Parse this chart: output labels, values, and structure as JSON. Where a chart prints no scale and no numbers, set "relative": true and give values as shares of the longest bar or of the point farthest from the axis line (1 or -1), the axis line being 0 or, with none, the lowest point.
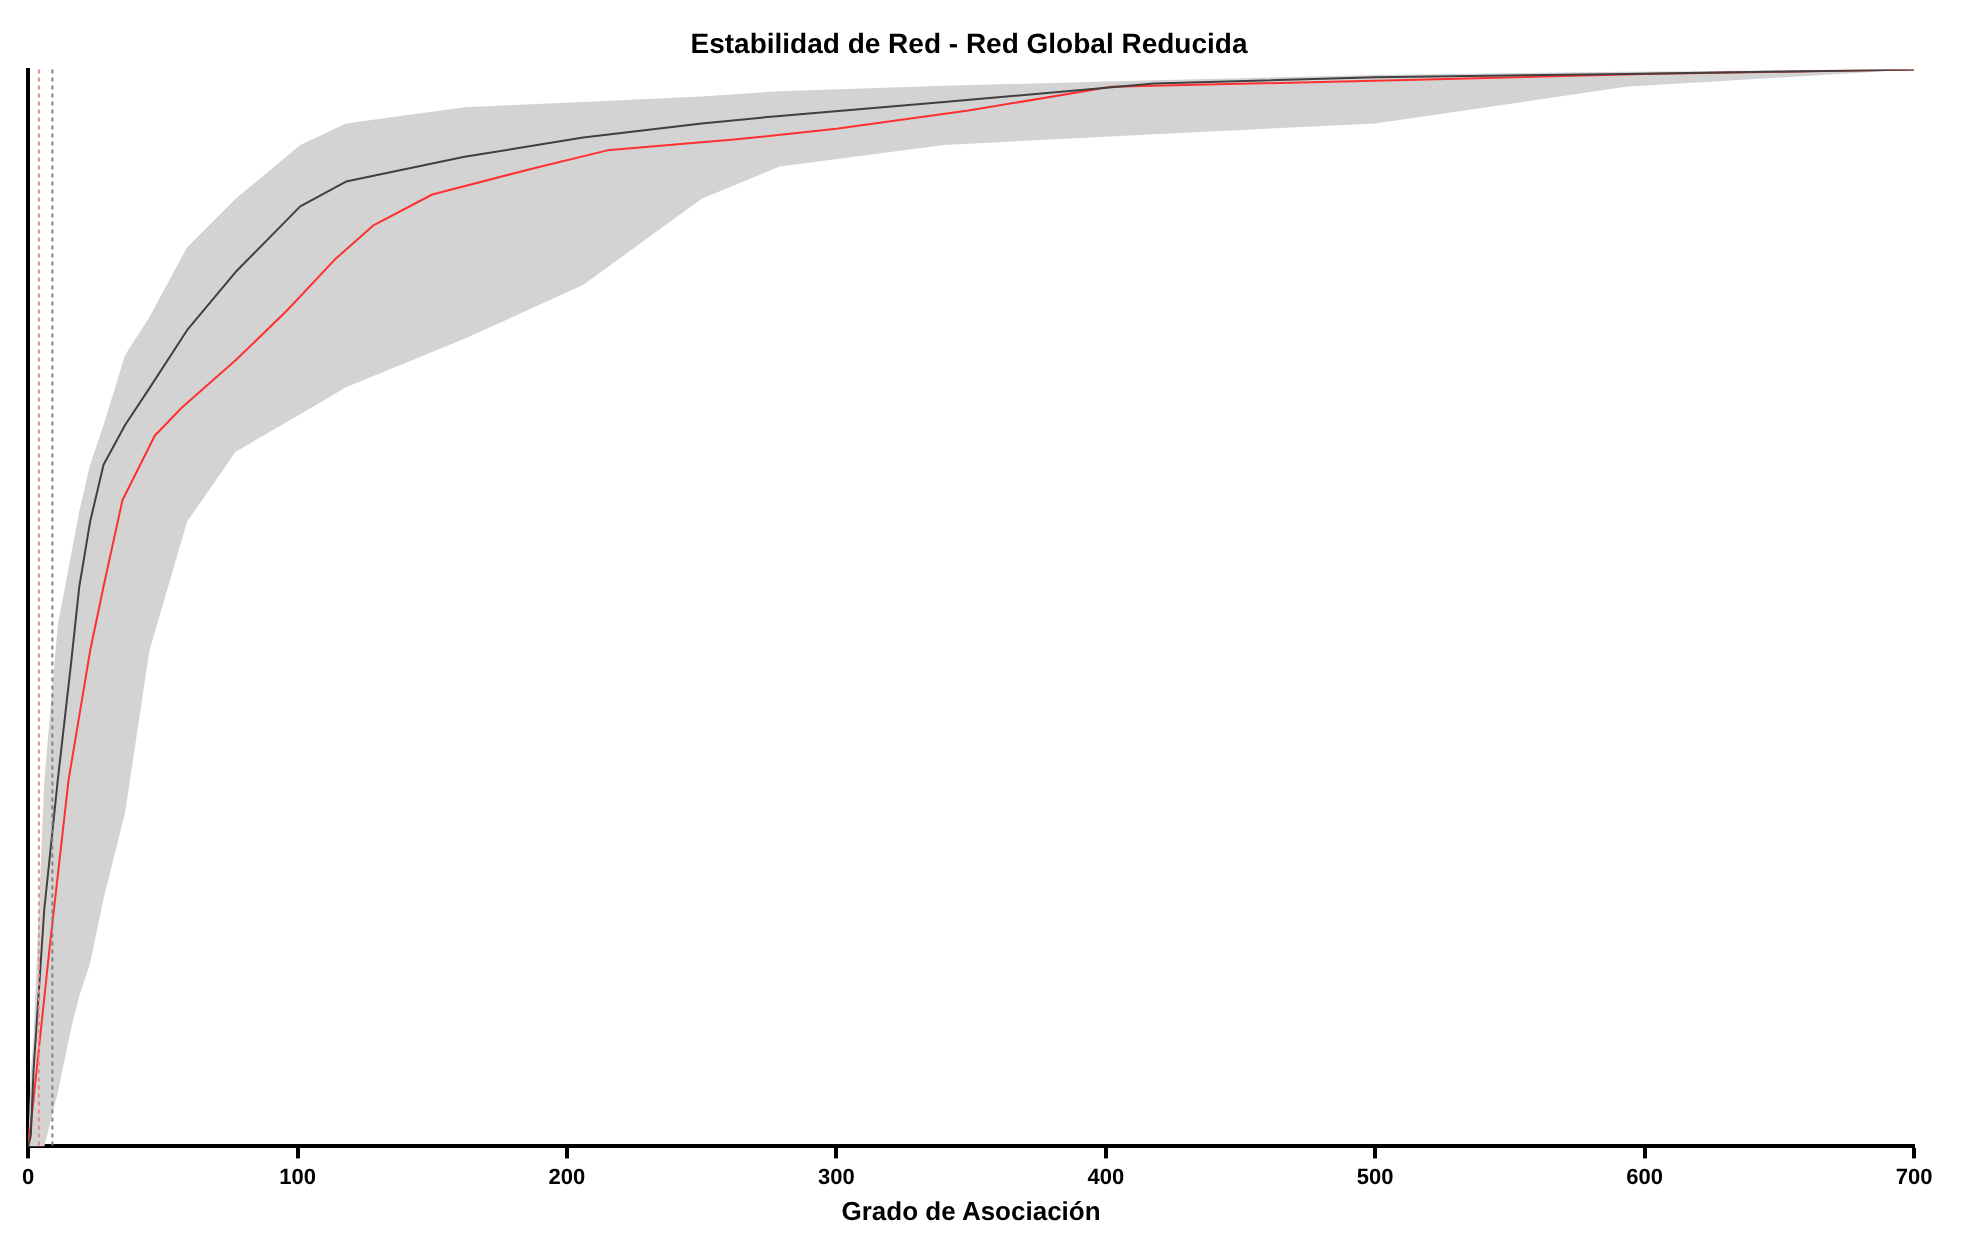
{
  "chart_data": {
    "type": "line",
    "title": "Estabilidad de Red - Red Global Reducida",
    "xlabel": "Grado de Asociación",
    "relative": true,
    "xlim": [
      0,
      700
    ],
    "xticks": [
      0,
      100,
      200,
      300,
      400,
      500,
      600,
      700
    ],
    "grid": false,
    "legend": false,
    "tick_labels": "x",
    "marker": "none",
    "line_style": "solid",
    "series": [
      {
        "color": "#404040",
        "x": [
          0,
          1,
          2,
          6,
          11,
          16,
          19,
          23,
          28,
          36,
          45,
          59,
          77,
          101,
          118,
          162,
          206,
          250,
          279,
          340,
          418,
          500,
          593,
          700
        ],
        "values": [
          0,
          0.01,
          0.07,
          0.22,
          0.34,
          0.45,
          0.52,
          0.58,
          0.633,
          0.67,
          0.704,
          0.758,
          0.812,
          0.873,
          0.896,
          0.919,
          0.937,
          0.95,
          0.957,
          0.97,
          0.987,
          0.993,
          0.996,
          1
        ],
        "lower": [
          0,
          0,
          0,
          0,
          0.05,
          0.11,
          0.14,
          0.17,
          0.23,
          0.31,
          0.46,
          0.58,
          0.645,
          0.68,
          0.705,
          0.75,
          0.8,
          0.88,
          0.91,
          0.93,
          0.94,
          0.95,
          0.984,
          1
        ],
        "upper": [
          0,
          0.07,
          0.1,
          0.34,
          0.484,
          0.55,
          0.59,
          0.633,
          0.67,
          0.735,
          0.77,
          0.835,
          0.88,
          0.93,
          0.95,
          0.965,
          0.97,
          0.975,
          0.98,
          0.985,
          0.99,
          0.995,
          0.998,
          1
        ]
      },
      {
        "color": "#ff3030",
        "x": [
          0,
          1,
          8,
          15,
          23,
          28,
          35,
          47,
          57,
          77,
          96,
          114,
          128,
          150,
          187,
          215,
          262,
          300,
          349,
          402,
          523,
          600,
          700
        ],
        "values": [
          0,
          0.02,
          0.185,
          0.34,
          0.46,
          0.52,
          0.6,
          0.66,
          0.686,
          0.73,
          0.776,
          0.824,
          0.855,
          0.884,
          0.908,
          0.925,
          0.935,
          0.945,
          0.962,
          0.984,
          0.991,
          0.996,
          1
        ]
      }
    ],
    "ref_lines": [
      {
        "axis": "x",
        "value": 4,
        "color": "#ff8080",
        "line_style": "dotted"
      },
      {
        "axis": "x",
        "value": 9,
        "color": "#808080",
        "line_style": "dotted"
      }
    ]
  }
}
